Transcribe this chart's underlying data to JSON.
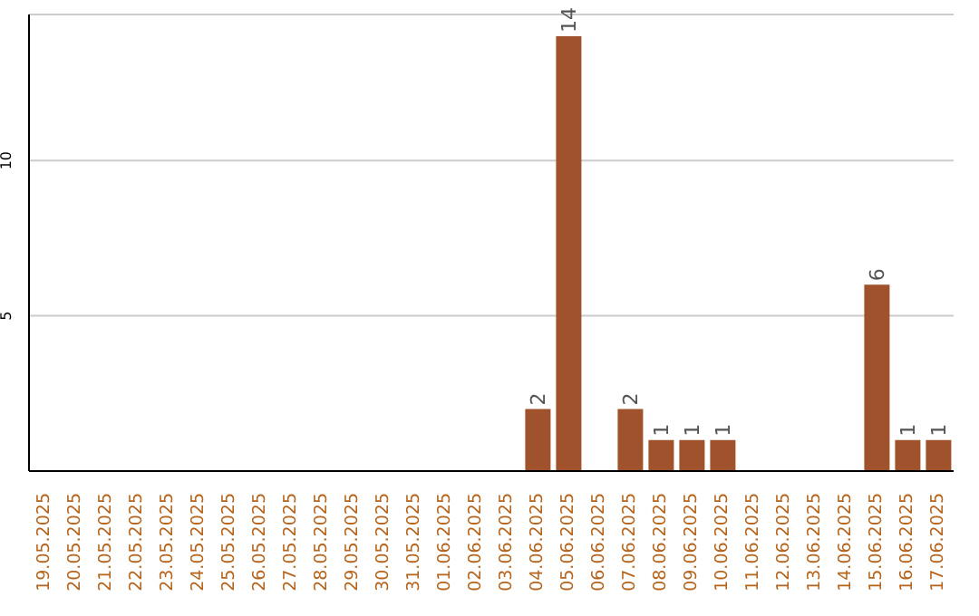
{
  "chart_data": {
    "type": "bar",
    "categories": [
      "19.05.2025",
      "20.05.2025",
      "21.05.2025",
      "22.05.2025",
      "23.05.2025",
      "24.05.2025",
      "25.05.2025",
      "26.05.2025",
      "27.05.2025",
      "28.05.2025",
      "29.05.2025",
      "30.05.2025",
      "31.05.2025",
      "01.06.2025",
      "02.06.2025",
      "03.06.2025",
      "04.06.2025",
      "05.06.2025",
      "06.06.2025",
      "07.06.2025",
      "08.06.2025",
      "09.06.2025",
      "10.06.2025",
      "11.06.2025",
      "12.06.2025",
      "13.06.2025",
      "14.06.2025",
      "15.06.2025",
      "16.06.2025",
      "17.06.2025"
    ],
    "values": [
      0,
      0,
      0,
      0,
      0,
      0,
      0,
      0,
      0,
      0,
      0,
      0,
      0,
      0,
      0,
      0,
      2,
      14,
      0,
      2,
      1,
      1,
      1,
      0,
      0,
      0,
      0,
      6,
      1,
      1
    ],
    "value_labels": [
      null,
      null,
      null,
      null,
      null,
      null,
      null,
      null,
      null,
      null,
      null,
      null,
      null,
      null,
      null,
      null,
      "2",
      "14",
      null,
      "2",
      "1",
      "1",
      "1",
      null,
      null,
      null,
      null,
      "6",
      "1",
      "1"
    ],
    "color": "#a0522d",
    "ylim": [
      0,
      14.7
    ],
    "yticks": [
      5,
      10
    ],
    "grid": "y",
    "legend": false
  }
}
